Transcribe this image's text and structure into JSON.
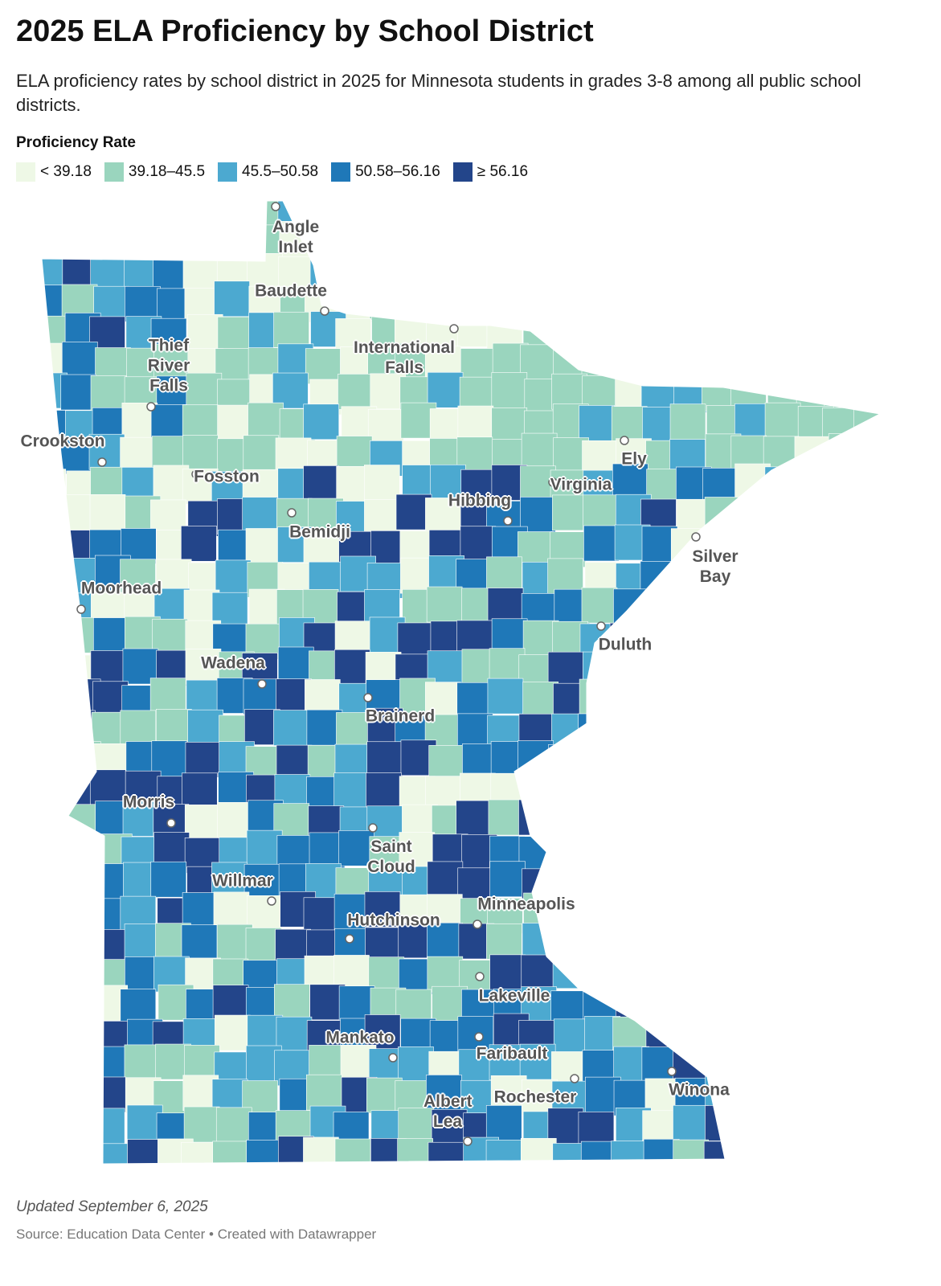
{
  "header": {
    "title": "2025 ELA Proficiency by School District",
    "subtitle": "ELA proficiency rates by school district in 2025 for Minnesota students in grades 3-8 among all public school districts."
  },
  "legend": {
    "title": "Proficiency Rate",
    "items": [
      {
        "label": "< 39.18",
        "color": "#eef8e6"
      },
      {
        "label": "39.18–45.5",
        "color": "#9ad5be"
      },
      {
        "label": "45.5–50.58",
        "color": "#4ca9d0"
      },
      {
        "label": "50.58–56.16",
        "color": "#1f78b8"
      },
      {
        "label": "≥ 56.16",
        "color": "#23458a"
      }
    ]
  },
  "cities": [
    "Angle Inlet",
    "Baudette",
    "Thief River Falls",
    "International Falls",
    "Crookston",
    "Fosston",
    "Bemidji",
    "Ely",
    "Virginia",
    "Hibbing",
    "Silver Bay",
    "Moorhead",
    "Duluth",
    "Wadena",
    "Brainerd",
    "Morris",
    "Saint Cloud",
    "Willmar",
    "Minneapolis",
    "Hutchinson",
    "Lakeville",
    "Mankato",
    "Faribault",
    "Albert Lea",
    "Rochester",
    "Winona"
  ],
  "footer": {
    "updated": "Updated September 6, 2025",
    "source": "Source: Education Data Center • Created with Datawrapper"
  }
}
